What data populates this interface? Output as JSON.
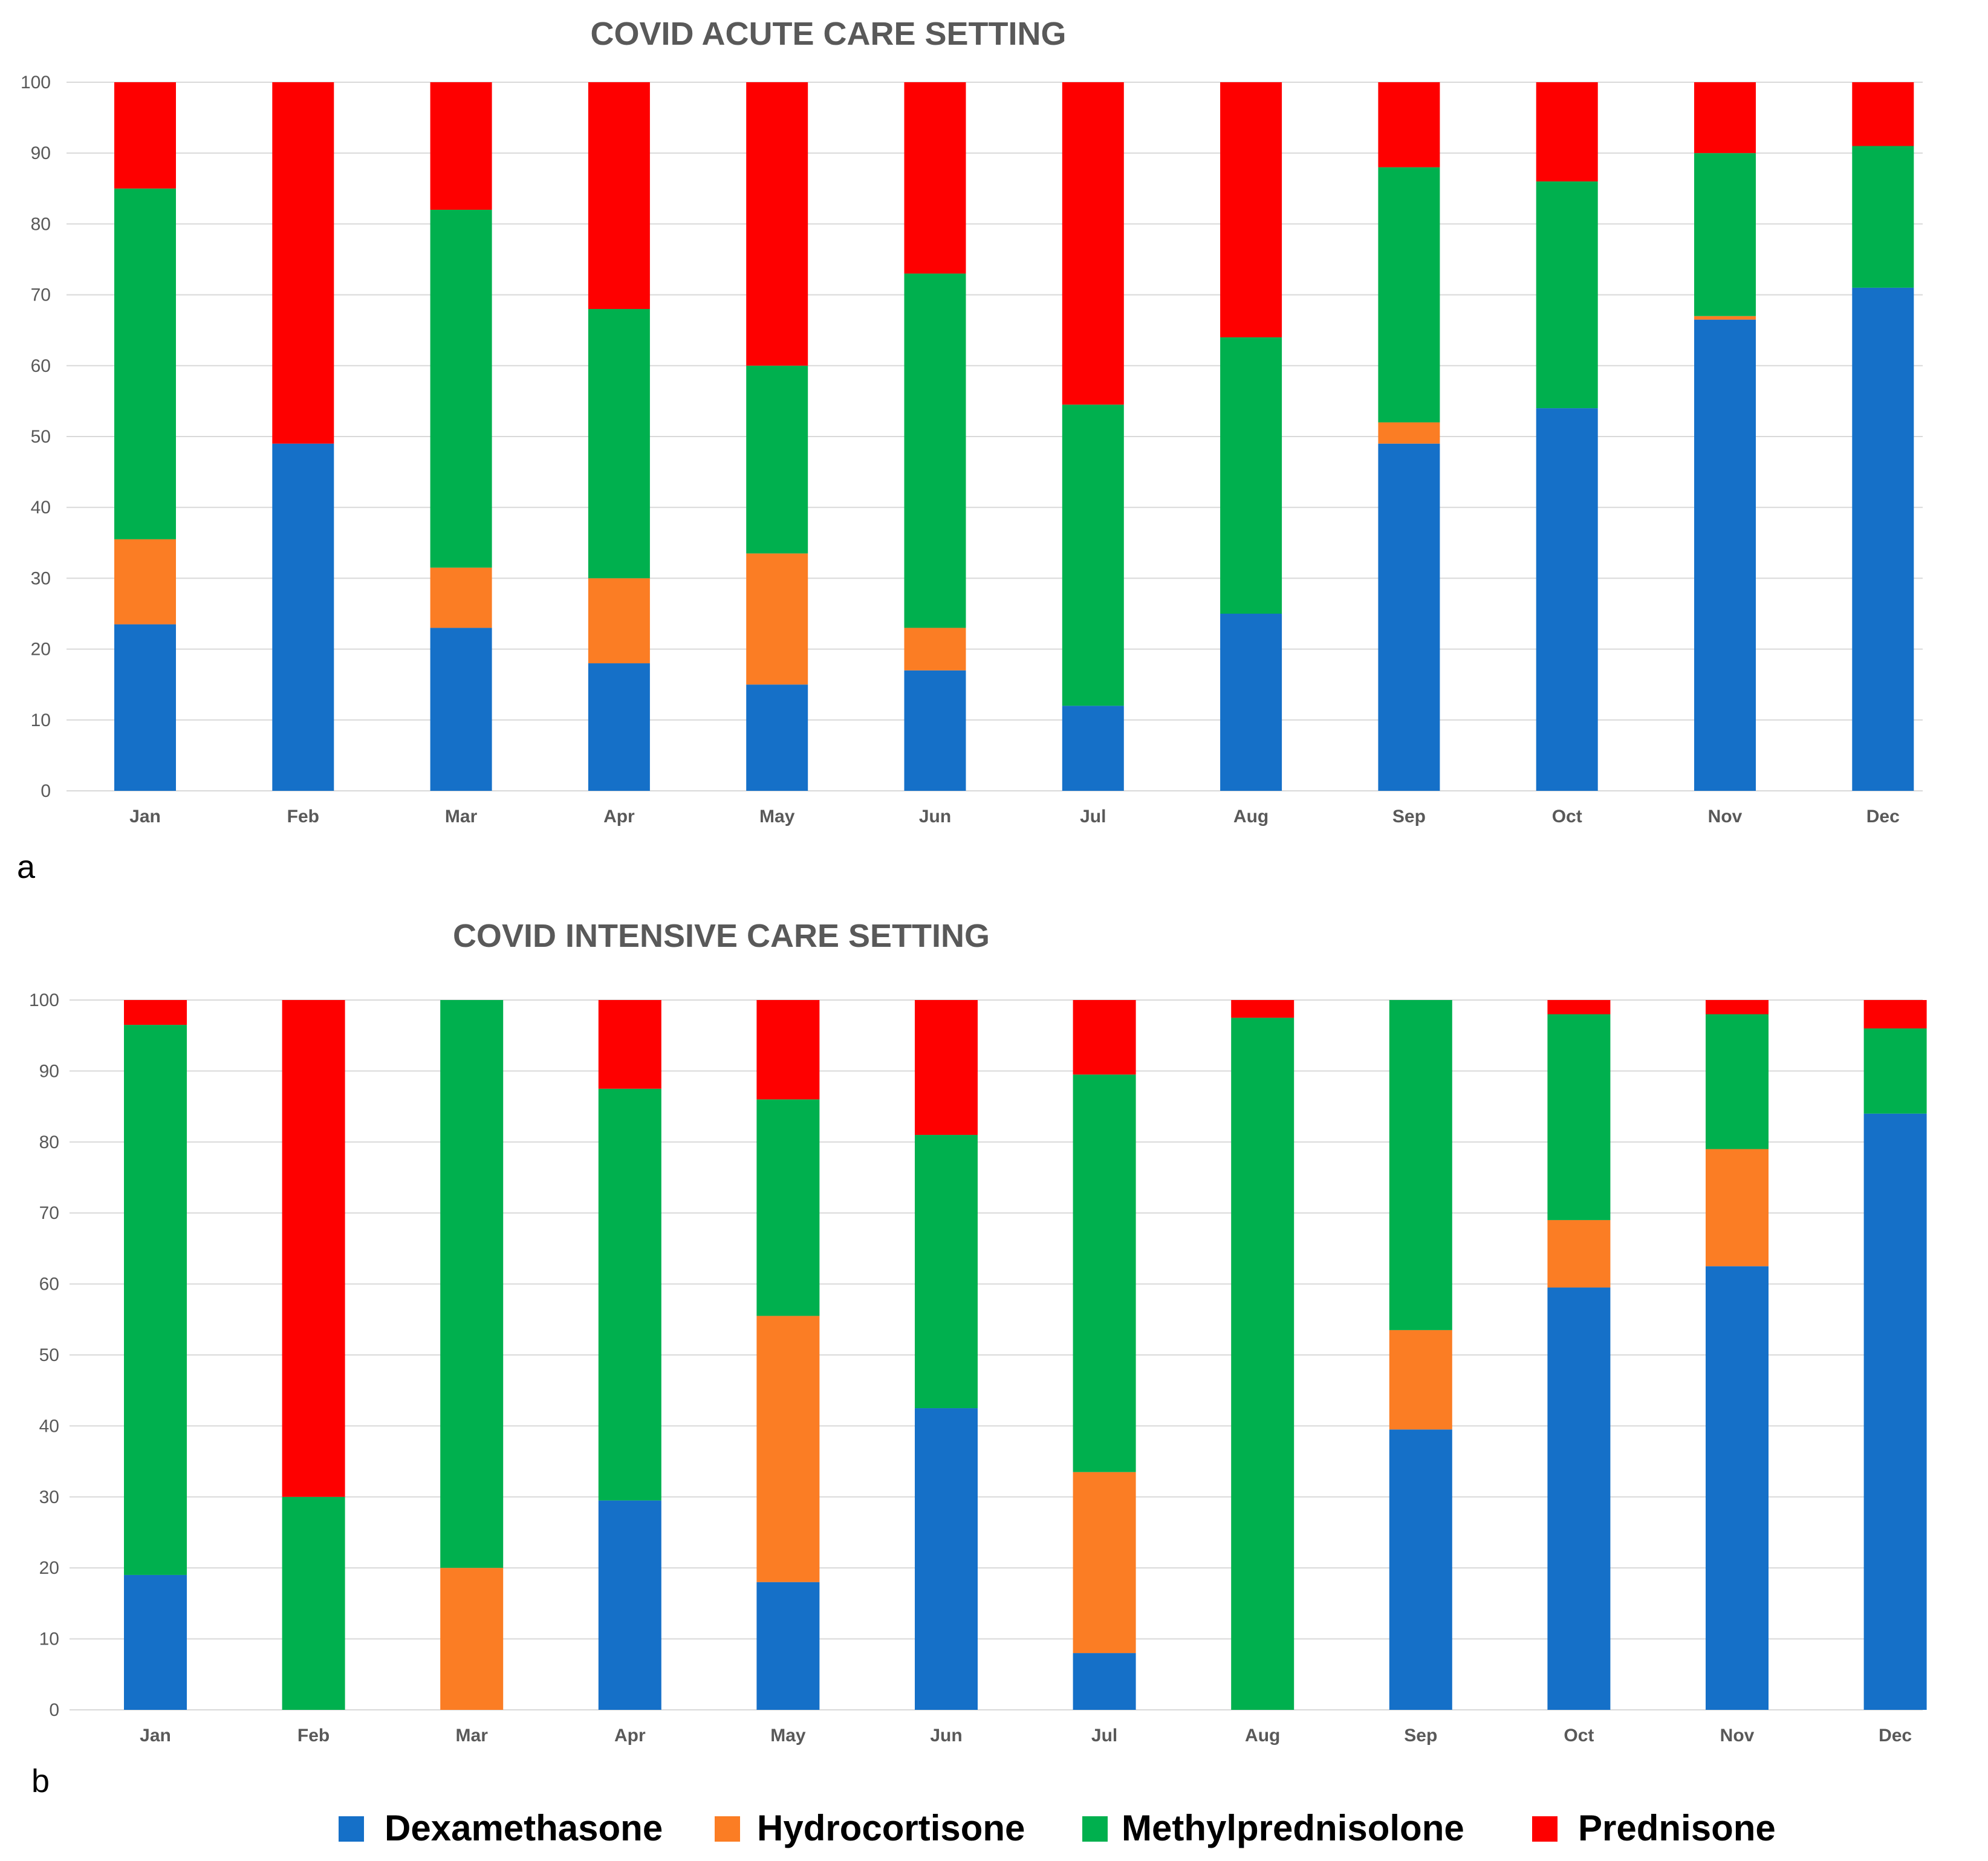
{
  "colors": {
    "Dexamethasone": "#1570c8",
    "Hydrocortisone": "#fb7d24",
    "Methylprednisolone": "#00b04e",
    "Prednisone": "#fe0000"
  },
  "legend": {
    "items": [
      "Dexamethasone",
      "Hydrocortisone",
      "Methylprednisolone",
      "Prednisone"
    ],
    "placement": "bottom-center"
  },
  "chart_data": [
    {
      "type": "bar",
      "stacked": true,
      "title": "COVID ACUTE CARE SETTING",
      "panel_label": "a",
      "xlabel": "",
      "ylabel": "",
      "ylim": [
        0,
        100
      ],
      "yticks": [
        0,
        10,
        20,
        30,
        40,
        50,
        60,
        70,
        80,
        90,
        100
      ],
      "grid": true,
      "categories": [
        "Jan",
        "Feb",
        "Mar",
        "Apr",
        "May",
        "Jun",
        "Jul",
        "Aug",
        "Sep",
        "Oct",
        "Nov",
        "Dec"
      ],
      "series": [
        {
          "name": "Dexamethasone",
          "values": [
            23.5,
            49,
            23,
            18,
            15,
            17,
            12,
            25,
            49,
            54,
            66.5,
            71
          ]
        },
        {
          "name": "Hydrocortisone",
          "values": [
            12,
            0,
            8.5,
            12,
            18.5,
            6,
            0,
            0,
            3,
            0,
            0.5,
            0
          ]
        },
        {
          "name": "Methylprednisolone",
          "values": [
            49.5,
            0,
            50.5,
            38,
            26.5,
            50,
            42.5,
            39,
            36,
            32,
            23,
            20
          ]
        },
        {
          "name": "Prednisone",
          "values": [
            15,
            51,
            18,
            32,
            40,
            27,
            45.5,
            36,
            12,
            14,
            10,
            9
          ]
        }
      ]
    },
    {
      "type": "bar",
      "stacked": true,
      "title": "COVID INTENSIVE CARE SETTING",
      "panel_label": "b",
      "xlabel": "",
      "ylabel": "",
      "ylim": [
        0,
        100
      ],
      "yticks": [
        0,
        10,
        20,
        30,
        40,
        50,
        60,
        70,
        80,
        90,
        100
      ],
      "grid": true,
      "categories": [
        "Jan",
        "Feb",
        "Mar",
        "Apr",
        "May",
        "Jun",
        "Jul",
        "Aug",
        "Sep",
        "Oct",
        "Nov",
        "Dec"
      ],
      "series": [
        {
          "name": "Dexamethasone",
          "values": [
            19,
            0,
            0,
            29.5,
            18,
            42.5,
            8,
            0,
            39.5,
            59.5,
            62.5,
            84
          ]
        },
        {
          "name": "Hydrocortisone",
          "values": [
            0,
            0,
            20,
            0,
            37.5,
            0,
            25.5,
            0,
            14,
            9.5,
            16.5,
            0
          ]
        },
        {
          "name": "Methylprednisolone",
          "values": [
            77.5,
            30,
            80,
            58,
            30.5,
            38.5,
            56,
            97.5,
            46.5,
            29,
            19,
            12
          ]
        },
        {
          "name": "Prednisone",
          "values": [
            3.5,
            70,
            0,
            12.5,
            14,
            19,
            10.5,
            2.5,
            0,
            2,
            2,
            4
          ]
        }
      ]
    }
  ]
}
